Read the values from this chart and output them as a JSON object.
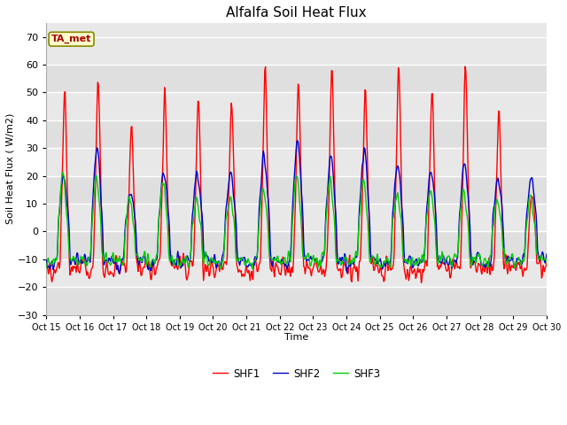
{
  "title": "Alfalfa Soil Heat Flux",
  "ylabel": "Soil Heat Flux (W/m2)",
  "xlabel": "Time",
  "ylim": [
    -30,
    75
  ],
  "yticks": [
    -30,
    -20,
    -10,
    0,
    10,
    20,
    30,
    40,
    50,
    60,
    70
  ],
  "xtick_labels": [
    "Oct 15",
    "Oct 16",
    "Oct 17",
    "Oct 18",
    "Oct 19",
    "Oct 20",
    "Oct 21",
    "Oct 22",
    "Oct 23",
    "Oct 24",
    "Oct 25",
    "Oct 26",
    "Oct 27",
    "Oct 28",
    "Oct 29",
    "Oct 30"
  ],
  "legend_labels": [
    "SHF1",
    "SHF2",
    "SHF3"
  ],
  "legend_colors": [
    "#ff0000",
    "#0000cc",
    "#00cc00"
  ],
  "bg_color": "#e8e8e8",
  "annotation_text": "TA_met",
  "annotation_bg": "#ffffcc",
  "annotation_border": "#aa0000",
  "title_fontsize": 11,
  "axis_label_fontsize": 8,
  "tick_fontsize": 7
}
